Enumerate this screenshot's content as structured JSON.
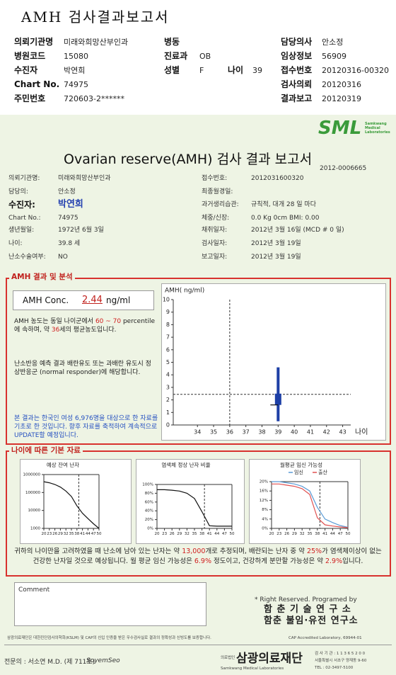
{
  "header": {
    "title": "AMH 검사결과보고서",
    "fields": [
      {
        "label": "의뢰기관명",
        "value": "미래와희망산부인과"
      },
      {
        "label": "병동"
      },
      {
        "label": "담당의사",
        "value": "안소정"
      },
      {
        "label": "병원코드",
        "value": "15080"
      },
      {
        "label": "진료과",
        "value": "OB"
      },
      {
        "label": "임상정보",
        "value": "56909"
      },
      {
        "label": "수진자",
        "value": "박연희"
      },
      {
        "label": "성별",
        "value": "F"
      },
      {
        "label": "나이",
        "value": "39"
      },
      {
        "label": "접수번호",
        "value": "20120316-00320"
      },
      {
        "label": "Chart No.",
        "value": "74975"
      },
      {
        "label": "검사의뢰",
        "value": "20120316"
      },
      {
        "label": "주민번호",
        "value": "720603-2******"
      },
      {
        "label": "결과보고",
        "value": "20120319"
      }
    ]
  },
  "report": {
    "logo": "SML",
    "logo_sub": "Samkwang Medical Laboratories",
    "title": "Ovarian reserve(AMH) 검사 결과 보고서",
    "report_no": "2012-0006665",
    "patient_left": [
      {
        "label": "의뢰기관명:",
        "value": "미래와희망산부인과"
      },
      {
        "label": "담당의:",
        "value": "안소정"
      },
      {
        "label": "수진자:",
        "value": "박연희"
      },
      {
        "label": "Chart No.:",
        "value": "74975"
      },
      {
        "label": "생년월일:",
        "value": "1972년 6월 3일"
      },
      {
        "label": "나이:",
        "value": "39.8 세"
      },
      {
        "label": "난소수술여부:",
        "value": "NO"
      }
    ],
    "patient_right": [
      {
        "label": "접수번호:",
        "value": "2012031600320"
      },
      {
        "label": "최종월경일:"
      },
      {
        "label": "과거생리습관:",
        "value": "규칙적, 대개  28 일 마다"
      },
      {
        "label": "체중/신장:",
        "value": "0.0 Kg      0cm    BMI:  0.00"
      },
      {
        "label": "채취일자:",
        "value": "2012년 3월 16일   (MCD # 0 일)"
      },
      {
        "label": "검사일자:",
        "value": "2012년 3월 19일"
      },
      {
        "label": "보고일자:",
        "value": "2012년 3월 19일"
      }
    ],
    "amh_section": {
      "heading": "AMH 결과 및 분석",
      "conc_label": "AMH Conc.",
      "conc_value": "2.44",
      "conc_unit": "ng/ml",
      "para1": [
        {
          "text": "AMH 농도는 동일 나이군에서 "
        },
        {
          "text": "60 ~ 70",
          "highlight": true
        },
        {
          "text": " percentile에 속하며, 약 "
        },
        {
          "text": "36",
          "highlight": true
        },
        {
          "text": "세의 평균농도입니다."
        }
      ],
      "para2": "난소반응 예측 결과 배란유도 또는 과배란 유도시 정상반응군 (normal responder)에 해당합니다.",
      "para3": "본 결과는 한국인 여성 6,976명을 대상으로 한 자료를 기초로 한 것입니다. 향후 자료를 축적하여 계속적으로 UPDATE할 예정입니다."
    },
    "basic_section": {
      "heading": "나이에 따른 기본 자료"
    },
    "summary": [
      {
        "text": "귀하의 나이만을 고려하였을 때 난소에 남아 있는 난자는 약 "
      },
      {
        "text": "13,000",
        "highlight": true
      },
      {
        "text": "개로 추정되며, 배란되는 난자 중 약 "
      },
      {
        "text": "25%",
        "highlight": true
      },
      {
        "text": "가 염색체이상이 없는 건강한 난자일 것으로 예상됩니다. 월 평균 임신 가능성은 "
      },
      {
        "text": "6.9%",
        "highlight": true
      },
      {
        "text": " 정도이고, 건강하게 분만할 가능성은 약 "
      },
      {
        "text": "2.9%",
        "highlight": true
      },
      {
        "text": "입니다."
      }
    ],
    "comment_label": "Comment",
    "rights": "* Right Reserved. Programed by",
    "lab1": "함 춘 기 술 연 구 소",
    "lab2": "함춘 불임·유전 연구소",
    "footer_note": "삼광의료재단은 대한진단검사의학회(KSLM) 및 CAP의 신입 인증을 받은 우수검사실로 결과의 정확성과 신빙도를 보증합니다.",
    "cap": "CAP Accredited Laboratory,  69944-01",
    "doctor": "전문의 : 서소연 M.D. (제 711호)",
    "signature": "SoyemSeo",
    "org_prefix": "의료법인",
    "org": "삼광의료재단",
    "org_en": "Samkwang Medical Laboratories",
    "address": [
      "검 사 기 관 : 1 1 3 6 5 2 0 0",
      "서울특별시 서초구 양재동 9-60",
      "TEL : 02-3497-5100"
    ]
  },
  "chart_data": [
    {
      "type": "box",
      "y_label": "AMH( ng/ml)",
      "x_label": "나이",
      "xlim": [
        32.5,
        43.5
      ],
      "xticks": [
        34,
        35,
        36,
        37,
        38,
        39,
        40,
        41,
        42,
        43
      ],
      "ylim": [
        0,
        10
      ],
      "yticks": [
        0,
        1,
        2,
        3,
        4,
        5,
        6,
        7,
        8,
        9,
        10
      ],
      "box": {
        "x": 39,
        "low": 0.3,
        "q1": 1.6,
        "q3": 2.5,
        "high": 4.6,
        "median": 1.6,
        "color": "#1d3fa6"
      },
      "equivalent_age": 36,
      "amh_value": 2.44
    },
    {
      "type": "line",
      "title": "예상 잔여 난자",
      "log_y": true,
      "xlim": [
        20,
        50
      ],
      "xticks": [
        20,
        23,
        26,
        29,
        32,
        35,
        38,
        41,
        44,
        47,
        50
      ],
      "ylim": [
        1000,
        1000000
      ],
      "yticks": [
        1000,
        10000,
        100000,
        1000000
      ],
      "x": [
        20,
        23,
        26,
        29,
        32,
        35,
        38,
        41,
        44,
        47,
        50
      ],
      "series": [
        {
          "color": "#111111",
          "values": [
            400000,
            350000,
            280000,
            200000,
            120000,
            60000,
            18000,
            7000,
            3500,
            1800,
            1000
          ]
        }
      ],
      "marker_x": 39
    },
    {
      "type": "line",
      "title": "염색체 정상 난자 비율",
      "xlim": [
        20,
        50
      ],
      "xticks": [
        20,
        23,
        26,
        29,
        32,
        35,
        38,
        41,
        44,
        47,
        50
      ],
      "ylim": [
        0,
        100
      ],
      "yticks": [
        {
          "value": 0,
          "label": "0%"
        },
        {
          "value": 20,
          "label": "20%"
        },
        {
          "value": 40,
          "label": "40%"
        },
        {
          "value": 60,
          "label": "60%"
        },
        {
          "value": 80,
          "label": "80%"
        },
        {
          "value": 100,
          "label": "100%"
        }
      ],
      "x": [
        20,
        23,
        26,
        29,
        32,
        35,
        38,
        41,
        44,
        47,
        50
      ],
      "series": [
        {
          "color": "#111111",
          "values": [
            88,
            88,
            87,
            85,
            80,
            68,
            38,
            6,
            5,
            5,
            5
          ]
        }
      ],
      "marker_x": 39
    },
    {
      "type": "line",
      "title": "월평균 임신 가능성",
      "xlim": [
        20,
        50
      ],
      "xticks": [
        20,
        23,
        26,
        29,
        32,
        35,
        38,
        41,
        44,
        47,
        50
      ],
      "ylim": [
        0,
        20
      ],
      "yticks": [
        {
          "value": 0,
          "label": "0%"
        },
        {
          "value": 4,
          "label": "4%"
        },
        {
          "value": 8,
          "label": "8%"
        },
        {
          "value": 12,
          "label": "12%"
        },
        {
          "value": 16,
          "label": "16%"
        },
        {
          "value": 20,
          "label": "20%"
        }
      ],
      "x": [
        20,
        23,
        26,
        29,
        32,
        35,
        38,
        41,
        44,
        47,
        50
      ],
      "series": [
        {
          "name": "임신",
          "color": "#5b9bd5",
          "values": [
            20,
            20,
            19.5,
            19,
            18,
            16,
            9,
            4,
            2.5,
            1.2,
            0.5
          ]
        },
        {
          "name": "출산",
          "color": "#e05050",
          "values": [
            19,
            19,
            18.5,
            18,
            17,
            14.5,
            4.5,
            1.5,
            1,
            0.6,
            0.3
          ]
        }
      ],
      "marker_x": 39,
      "legend": true
    }
  ]
}
